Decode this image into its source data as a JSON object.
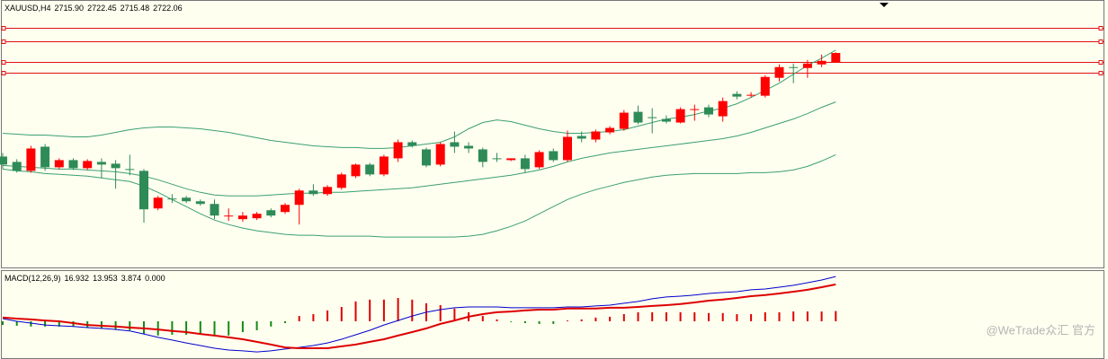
{
  "chart_data": [
    {
      "type": "candlestick",
      "symbol": "XAUUSD,H4",
      "readout": [
        "2715.90",
        "2722.45",
        "2715.48",
        "2722.06"
      ],
      "ylim": [
        2578.2,
        2757
      ],
      "up_color": "#ff0000",
      "down_color": "#2e8b57",
      "band_color": "#3aa070",
      "hline_color": "#e01010",
      "hlines": [
        2739.0,
        2730.0,
        2716.2,
        2709.0
      ],
      "open": [
        2652.6,
        2649.0,
        2643.0,
        2659.2,
        2645.4,
        2650.2,
        2644.8,
        2649.0,
        2647.8,
        2644.2,
        2643.0,
        2617.8,
        2624.4,
        2625.0,
        2622.6,
        2620.8,
        2612.4,
        2610.6,
        2611.2,
        2616.6,
        2615.4,
        2620.2,
        2629.8,
        2627.4,
        2631.6,
        2639.4,
        2647.2,
        2640.6,
        2651.4,
        2662.2,
        2657.4,
        2647.2,
        2662.2,
        2659.8,
        2657.4,
        2651.4,
        2650.2,
        2651.4,
        2645.4,
        2656.2,
        2650.2,
        2666.4,
        2664.0,
        2668.8,
        2671.2,
        2682.6,
        2679.0,
        2677.8,
        2675.4,
        2683.8,
        2685.6,
        2679.6,
        2694.6,
        2693.4,
        2693.4,
        2705.4,
        2712.6,
        2712.0,
        2714.4,
        2715.9
      ],
      "high": [
        2655.0,
        2650.8,
        2659.8,
        2661.0,
        2651.4,
        2651.4,
        2650.8,
        2651.4,
        2650.2,
        2653.8,
        2644.2,
        2626.2,
        2627.4,
        2626.2,
        2623.8,
        2623.8,
        2617.8,
        2615.4,
        2615.4,
        2617.8,
        2621.4,
        2631.0,
        2634.0,
        2633.4,
        2641.8,
        2647.8,
        2648.4,
        2653.8,
        2664.0,
        2663.4,
        2658.6,
        2662.2,
        2669.4,
        2662.2,
        2658.6,
        2655.0,
        2651.4,
        2653.8,
        2656.8,
        2658.0,
        2670.0,
        2669.4,
        2670.6,
        2673.0,
        2683.8,
        2686.8,
        2685.0,
        2680.2,
        2685.6,
        2687.4,
        2687.4,
        2692.2,
        2696.4,
        2695.8,
        2707.2,
        2714.4,
        2715.0,
        2717.4,
        2721.0,
        2722.45
      ],
      "low": [
        2644.2,
        2641.8,
        2641.8,
        2643.0,
        2644.2,
        2643.6,
        2643.6,
        2638.2,
        2631.0,
        2640.0,
        2608.2,
        2616.6,
        2621.4,
        2621.4,
        2619.6,
        2610.6,
        2609.4,
        2608.8,
        2610.0,
        2611.8,
        2614.2,
        2607.0,
        2626.2,
        2626.2,
        2630.4,
        2638.2,
        2639.4,
        2639.4,
        2649.0,
        2658.6,
        2645.4,
        2646.0,
        2655.0,
        2655.0,
        2645.4,
        2649.0,
        2649.6,
        2641.8,
        2644.2,
        2649.0,
        2649.0,
        2662.2,
        2662.2,
        2667.6,
        2670.0,
        2674.2,
        2668.2,
        2674.8,
        2674.8,
        2676.6,
        2679.0,
        2676.0,
        2691.0,
        2692.2,
        2692.2,
        2703.0,
        2701.8,
        2705.4,
        2712.6,
        2715.48
      ],
      "close": [
        2647.2,
        2643.0,
        2658.0,
        2645.4,
        2650.2,
        2644.8,
        2649.6,
        2647.2,
        2644.8,
        2643.6,
        2617.2,
        2625.0,
        2623.8,
        2622.6,
        2620.8,
        2613.0,
        2613.0,
        2613.0,
        2614.2,
        2613.0,
        2620.2,
        2629.8,
        2627.4,
        2632.2,
        2640.6,
        2647.2,
        2640.6,
        2652.6,
        2662.2,
        2659.8,
        2646.6,
        2661.0,
        2659.2,
        2658.0,
        2649.0,
        2650.8,
        2651.4,
        2644.2,
        2655.6,
        2650.2,
        2665.8,
        2664.6,
        2669.4,
        2671.8,
        2682.0,
        2675.4,
        2678.4,
        2676.0,
        2684.4,
        2684.4,
        2680.8,
        2689.8,
        2692.8,
        2694.0,
        2706.0,
        2712.6,
        2712.0,
        2715.0,
        2716.8,
        2722.06
      ],
      "bands": [
        {
          "values": [
            2668.2,
            2667.6,
            2667.0,
            2667.0,
            2666.4,
            2665.8,
            2665.8,
            2667.0,
            2668.8,
            2670.6,
            2671.8,
            2672.4,
            2672.4,
            2671.8,
            2671.2,
            2670.0,
            2668.8,
            2667.0,
            2665.2,
            2663.4,
            2662.2,
            2661.0,
            2659.8,
            2659.2,
            2658.6,
            2658.6,
            2658.0,
            2658.0,
            2658.6,
            2659.8,
            2661.0,
            2662.2,
            2665.8,
            2671.2,
            2675.4,
            2677.2,
            2676.0,
            2673.6,
            2671.2,
            2669.4,
            2668.2,
            2668.2,
            2668.8,
            2669.4,
            2670.6,
            2673.0,
            2675.4,
            2677.8,
            2679.0,
            2680.8,
            2683.2,
            2685.0,
            2688.0,
            2692.2,
            2697.0,
            2701.8,
            2707.8,
            2713.8,
            2718.6,
            2724.0
          ]
        },
        {
          "values": [
            2646.6,
            2646.0,
            2645.4,
            2644.8,
            2644.2,
            2644.2,
            2643.6,
            2643.0,
            2642.4,
            2641.2,
            2639.4,
            2637.0,
            2634.0,
            2631.0,
            2628.6,
            2626.8,
            2626.2,
            2626.2,
            2626.2,
            2626.8,
            2627.4,
            2628.0,
            2628.0,
            2628.6,
            2628.6,
            2629.2,
            2629.8,
            2630.4,
            2631.0,
            2631.6,
            2632.8,
            2634.0,
            2635.2,
            2636.4,
            2637.6,
            2638.8,
            2640.0,
            2641.8,
            2643.6,
            2646.0,
            2649.0,
            2651.4,
            2653.2,
            2655.0,
            2656.2,
            2657.4,
            2658.6,
            2659.8,
            2661.0,
            2662.2,
            2663.4,
            2664.6,
            2666.4,
            2668.8,
            2671.8,
            2674.8,
            2677.8,
            2681.4,
            2685.6,
            2689.2
          ]
        },
        {
          "values": [
            2644.2,
            2643.0,
            2642.4,
            2641.2,
            2640.6,
            2640.0,
            2639.4,
            2638.2,
            2637.0,
            2635.8,
            2632.8,
            2628.6,
            2623.8,
            2619.0,
            2614.2,
            2610.0,
            2607.0,
            2604.6,
            2602.8,
            2601.6,
            2600.4,
            2599.8,
            2599.8,
            2599.2,
            2599.2,
            2599.2,
            2599.2,
            2598.6,
            2598.6,
            2598.6,
            2598.6,
            2598.6,
            2598.6,
            2599.2,
            2600.4,
            2602.8,
            2605.8,
            2609.4,
            2614.2,
            2619.0,
            2623.8,
            2627.4,
            2630.4,
            2632.8,
            2635.2,
            2637.0,
            2638.8,
            2640.0,
            2640.6,
            2641.2,
            2641.2,
            2641.2,
            2641.2,
            2641.8,
            2641.8,
            2642.4,
            2643.6,
            2646.0,
            2649.6,
            2653.8
          ]
        }
      ]
    },
    {
      "type": "macd",
      "title": "MACD(12,26,9)",
      "readout": [
        "16.932",
        "13.953",
        "3.874",
        "0.000"
      ],
      "ylim": [
        -13.6,
        19.0
      ],
      "up_color": "#dd0000",
      "down_color": "#138a13",
      "histogram": [
        -1.4,
        -1.7,
        -2.0,
        -2.0,
        -2.0,
        -2.0,
        -2.4,
        -2.7,
        -3.1,
        -3.4,
        -4.8,
        -5.4,
        -5.1,
        -5.1,
        -4.8,
        -5.1,
        -5.4,
        -4.1,
        -3.4,
        -2.0,
        -0.7,
        2.0,
        2.7,
        4.1,
        5.4,
        7.5,
        8.2,
        8.2,
        8.8,
        8.2,
        6.8,
        6.1,
        4.8,
        3.4,
        2.0,
        0.7,
        -0.3,
        -0.7,
        -1.0,
        -1.0,
        0.3,
        0.7,
        1.4,
        1.7,
        2.7,
        3.4,
        3.4,
        3.4,
        3.4,
        3.4,
        3.1,
        3.1,
        2.7,
        2.7,
        3.4,
        3.4,
        3.7,
        3.7,
        3.7,
        3.874
      ],
      "series": [
        {
          "color": "#0000cc",
          "width": 1,
          "values": [
            1.0,
            0.0,
            -0.7,
            -1.4,
            -1.7,
            -2.0,
            -2.4,
            -2.7,
            -3.1,
            -3.7,
            -4.8,
            -6.1,
            -7.1,
            -8.2,
            -9.2,
            -10.2,
            -10.9,
            -11.2,
            -11.6,
            -11.2,
            -10.5,
            -9.9,
            -9.2,
            -8.2,
            -6.8,
            -5.1,
            -3.4,
            -1.4,
            0.3,
            2.0,
            3.4,
            4.4,
            5.1,
            5.4,
            5.4,
            5.4,
            5.1,
            5.1,
            5.1,
            5.1,
            5.4,
            5.4,
            5.8,
            6.1,
            6.8,
            7.5,
            8.5,
            9.2,
            9.5,
            9.9,
            10.5,
            10.9,
            11.2,
            11.9,
            12.2,
            12.9,
            13.6,
            14.6,
            15.6,
            16.932
          ]
        },
        {
          "color": "#dd0000",
          "width": 2,
          "values": [
            1.4,
            1.0,
            0.7,
            0.3,
            0.0,
            -0.7,
            -1.4,
            -1.7,
            -2.0,
            -2.4,
            -2.7,
            -3.1,
            -3.7,
            -4.1,
            -4.8,
            -5.4,
            -6.1,
            -6.8,
            -7.8,
            -8.8,
            -9.9,
            -10.2,
            -10.2,
            -10.2,
            -9.5,
            -8.8,
            -7.8,
            -6.8,
            -5.4,
            -4.1,
            -2.7,
            -1.0,
            0.3,
            1.7,
            2.7,
            3.4,
            3.7,
            4.1,
            4.4,
            4.4,
            4.8,
            4.8,
            4.8,
            5.1,
            5.1,
            5.4,
            5.8,
            6.1,
            6.5,
            7.1,
            7.8,
            8.2,
            8.8,
            9.5,
            9.9,
            10.5,
            11.2,
            11.9,
            12.9,
            13.953
          ]
        }
      ]
    }
  ],
  "watermark": "@WeTrade众汇 官方"
}
